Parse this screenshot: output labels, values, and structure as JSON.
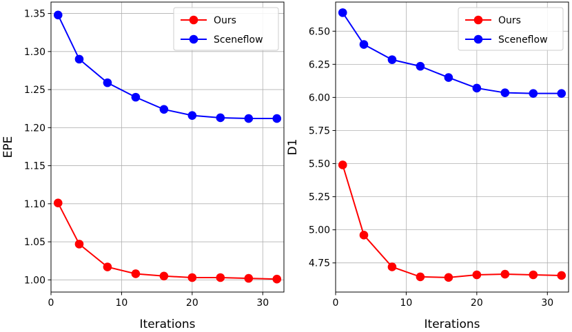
{
  "chart_data": [
    {
      "type": "line",
      "xlabel": "Iterations",
      "ylabel": "EPE",
      "xlim": [
        0,
        33
      ],
      "ylim": [
        0.984,
        1.365
      ],
      "xticks": [
        0,
        10,
        20,
        30
      ],
      "yticks": [
        1.0,
        1.05,
        1.1,
        1.15,
        1.2,
        1.25,
        1.3,
        1.35
      ],
      "ytick_labels": [
        "1.00",
        "1.05",
        "1.10",
        "1.15",
        "1.20",
        "1.25",
        "1.30",
        "1.35"
      ],
      "grid": true,
      "legend_position": "top-right",
      "x": [
        1,
        4,
        8,
        12,
        16,
        20,
        24,
        28,
        32
      ],
      "series": [
        {
          "name": "Ours",
          "color": "#ff0000",
          "values": [
            1.101,
            1.047,
            1.017,
            1.008,
            1.005,
            1.003,
            1.003,
            1.002,
            1.001
          ]
        },
        {
          "name": "Sceneflow",
          "color": "#0000ff",
          "values": [
            1.348,
            1.29,
            1.259,
            1.24,
            1.224,
            1.216,
            1.213,
            1.212,
            1.212
          ]
        }
      ]
    },
    {
      "type": "line",
      "xlabel": "Iterations",
      "ylabel": "D1",
      "xlim": [
        0,
        33
      ],
      "ylim": [
        4.53,
        6.72
      ],
      "xticks": [
        0,
        10,
        20,
        30
      ],
      "yticks": [
        4.75,
        5.0,
        5.25,
        5.5,
        5.75,
        6.0,
        6.25,
        6.5
      ],
      "ytick_labels": [
        "4.75",
        "5.00",
        "5.25",
        "5.50",
        "5.75",
        "6.00",
        "6.25",
        "6.50"
      ],
      "grid": true,
      "legend_position": "top-right",
      "x": [
        1,
        4,
        8,
        12,
        16,
        20,
        24,
        28,
        32
      ],
      "series": [
        {
          "name": "Ours",
          "color": "#ff0000",
          "values": [
            5.49,
            4.96,
            4.72,
            4.645,
            4.64,
            4.66,
            4.665,
            4.66,
            4.655
          ]
        },
        {
          "name": "Sceneflow",
          "color": "#0000ff",
          "values": [
            6.64,
            6.4,
            6.285,
            6.235,
            6.15,
            6.07,
            6.035,
            6.03,
            6.03
          ]
        }
      ]
    }
  ]
}
